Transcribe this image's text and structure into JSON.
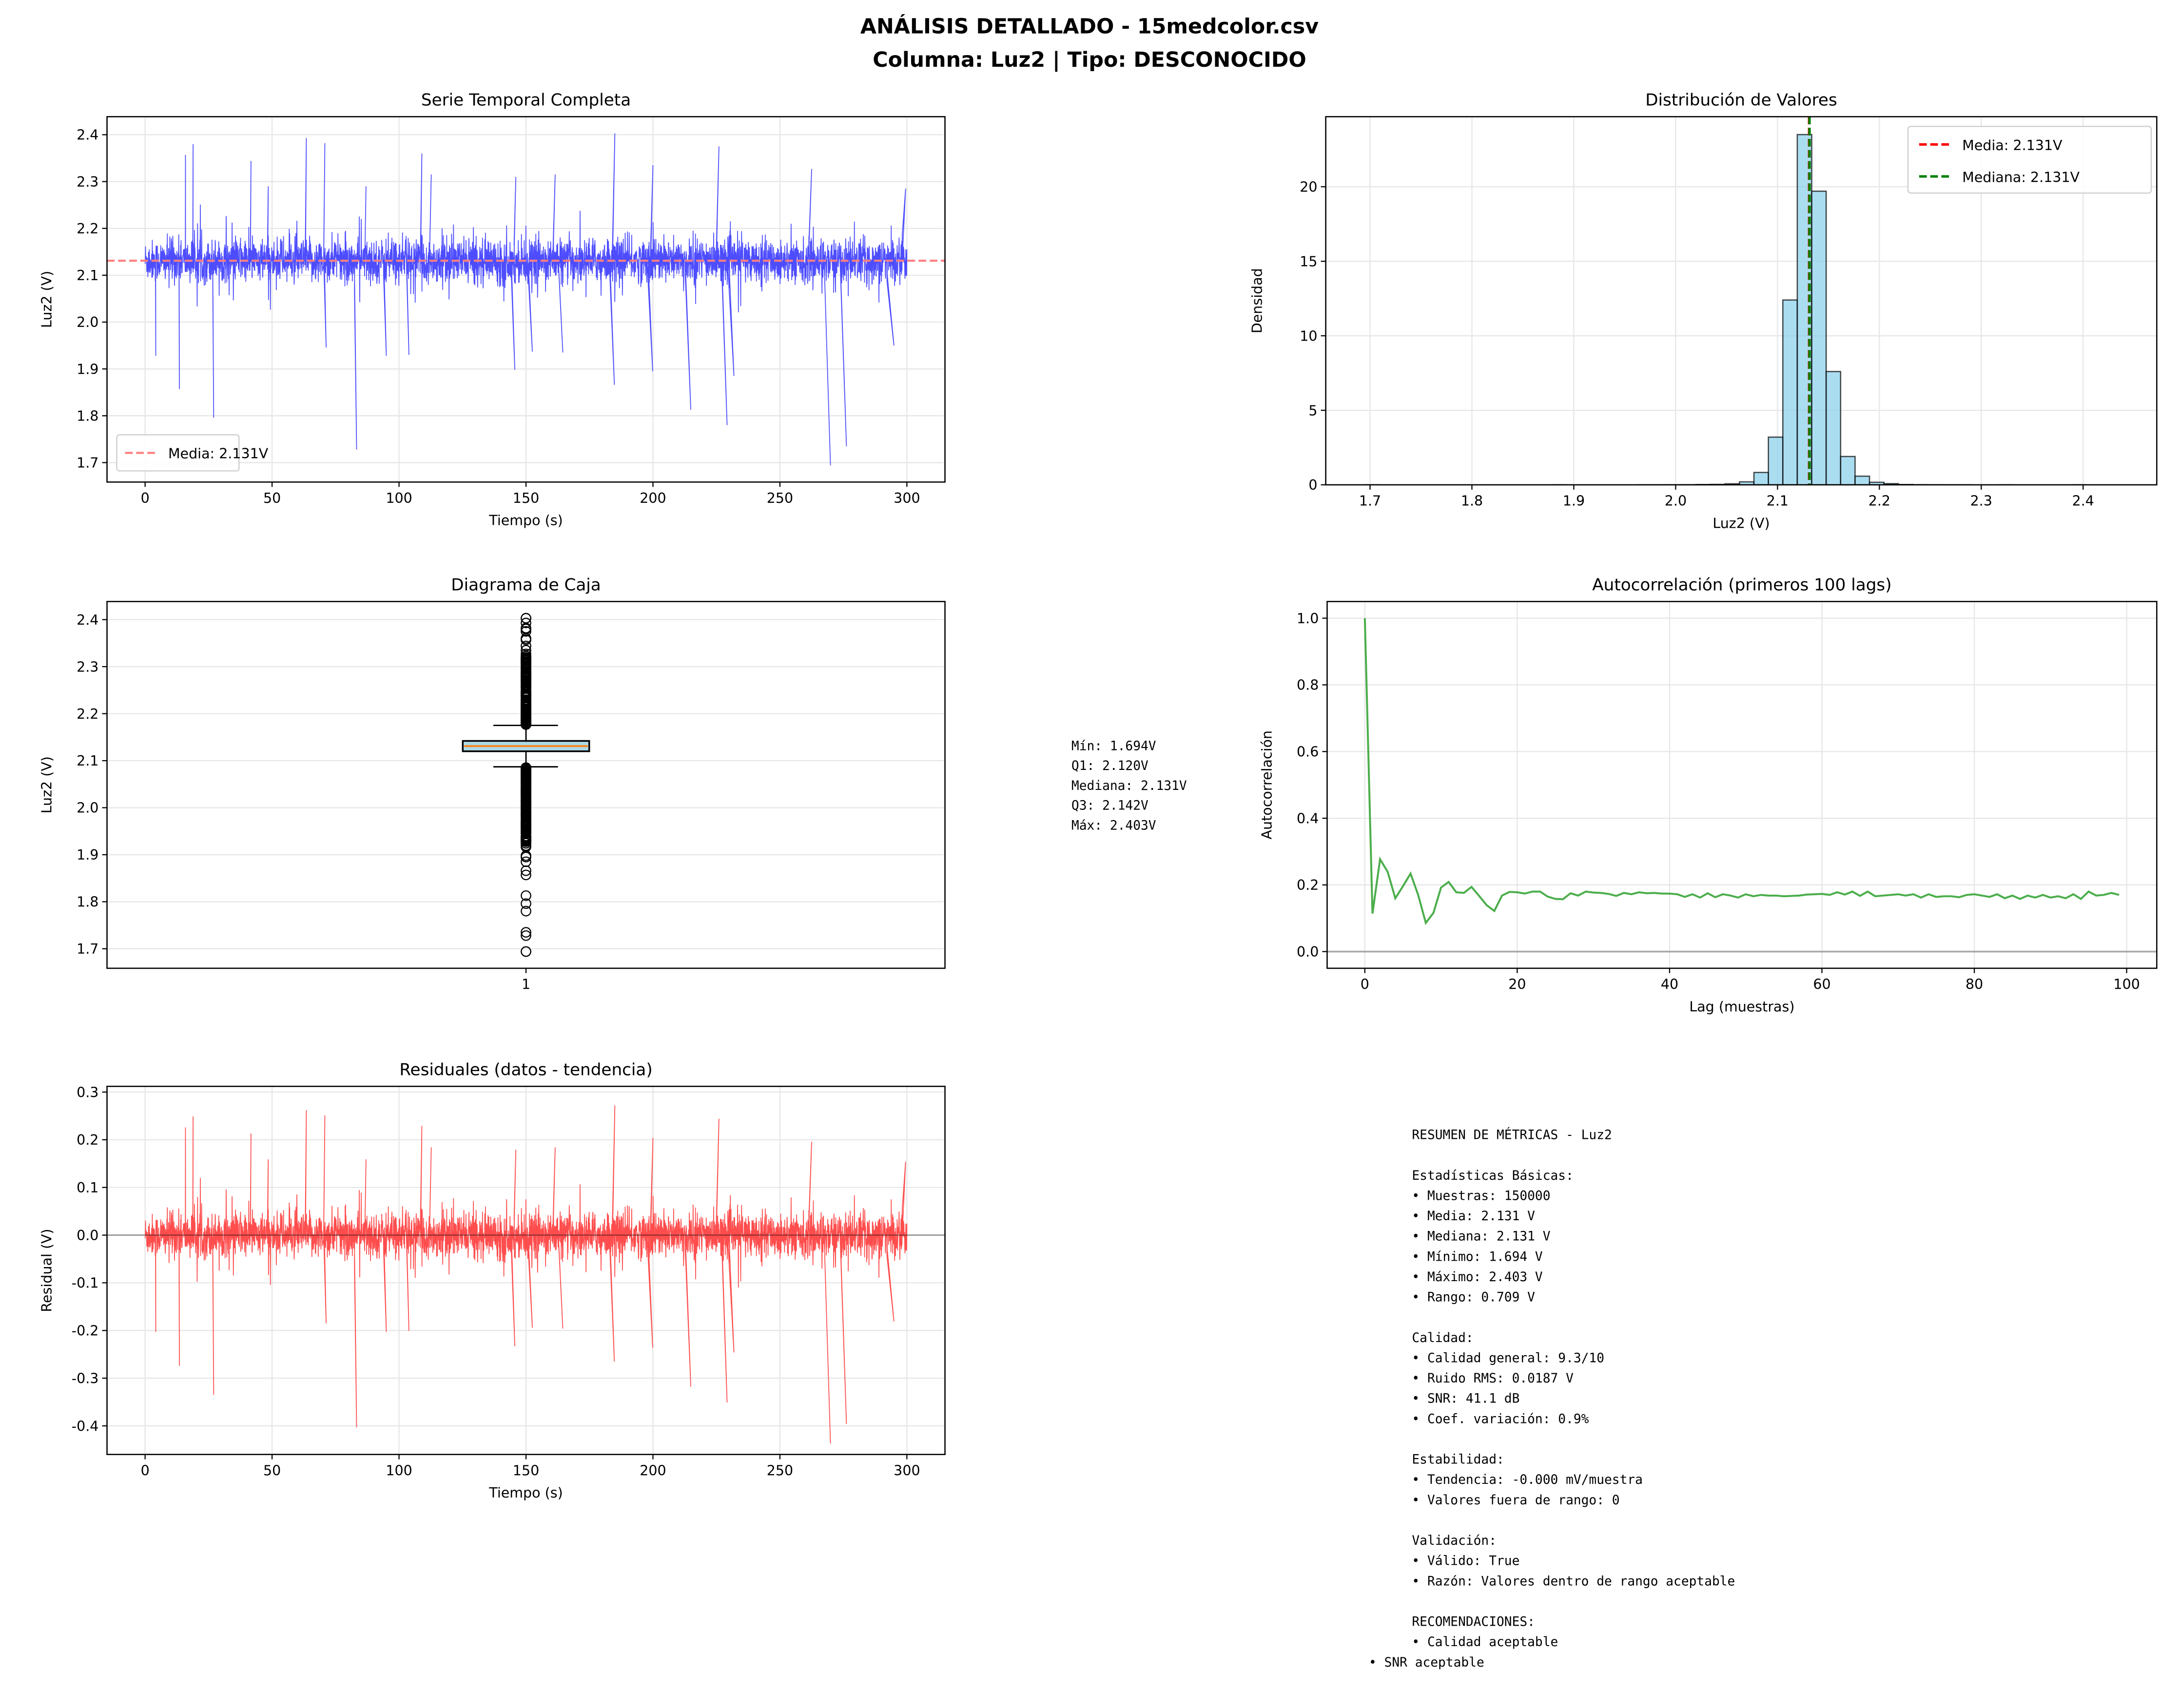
{
  "figure": {
    "suptitle_line1": "ANÁLISIS DETALLADO - 15medcolor.csv",
    "suptitle_line2": "Columna: Luz2 | Tipo: DESCONOCIDO"
  },
  "chart_data": [
    {
      "id": "timeseries",
      "type": "line",
      "title": "Serie Temporal Completa",
      "xlabel": "Tiempo (s)",
      "ylabel": "Luz2 (V)",
      "xlim": [
        -15,
        315
      ],
      "ylim": [
        1.6585,
        2.4385
      ],
      "xticks": [
        0,
        50,
        100,
        150,
        200,
        250,
        300
      ],
      "yticks": [
        1.7,
        1.8,
        1.9,
        2.0,
        2.1,
        2.2,
        2.3,
        2.4
      ],
      "grid": true,
      "color": "#4d4dff",
      "t_range": [
        0,
        300
      ],
      "samples": 150000,
      "mean": 2.131,
      "typical_band": [
        2.08,
        2.2
      ],
      "spikes": [
        [
          15.9,
          2.357
        ],
        [
          18.9,
          2.38
        ],
        [
          41.7,
          2.344
        ],
        [
          48.5,
          2.29
        ],
        [
          63.5,
          2.393
        ],
        [
          70.8,
          2.382
        ],
        [
          87,
          2.29
        ],
        [
          109,
          2.36
        ],
        [
          112.7,
          2.315
        ],
        [
          146,
          2.31
        ],
        [
          161.5,
          2.315
        ],
        [
          185,
          2.403
        ],
        [
          200,
          2.335
        ],
        [
          226,
          2.375
        ],
        [
          262.5,
          2.327
        ],
        [
          299.5,
          2.285
        ],
        [
          4.2,
          1.928
        ],
        [
          13.5,
          1.857
        ],
        [
          27,
          1.796
        ],
        [
          71.3,
          1.946
        ],
        [
          83.3,
          1.728
        ],
        [
          95,
          1.928
        ],
        [
          103.9,
          1.93
        ],
        [
          145.6,
          1.898
        ],
        [
          152.5,
          1.937
        ],
        [
          164.5,
          1.935
        ],
        [
          184.8,
          1.866
        ],
        [
          199.9,
          1.895
        ],
        [
          214.9,
          1.813
        ],
        [
          229.2,
          1.78
        ],
        [
          231.9,
          1.885
        ],
        [
          269.9,
          1.694
        ],
        [
          276.2,
          1.735
        ],
        [
          294.9,
          1.95
        ]
      ],
      "mean_line": {
        "value": 2.131,
        "label": "Media: 2.131V",
        "color": "#ff7f7f"
      },
      "legend": "lower-left"
    },
    {
      "id": "histogram",
      "type": "bar",
      "title": "Distribución de Valores",
      "xlabel": "Luz2 (V)",
      "ylabel": "Densidad",
      "xlim": [
        1.6565,
        2.4723
      ],
      "ylim": [
        0,
        24.7
      ],
      "xticks": [
        1.7,
        1.8,
        1.9,
        2.0,
        2.1,
        2.2,
        2.3,
        2.4
      ],
      "yticks": [
        0,
        5,
        10,
        15,
        20
      ],
      "grid": true,
      "bin_start": 1.694,
      "bin_end": 2.403,
      "bins": 50,
      "density": [
        0.003,
        0,
        0,
        0,
        0,
        0,
        0,
        0,
        0,
        0,
        0,
        0,
        0,
        0.003,
        0,
        0,
        0,
        0,
        0,
        0.003,
        0.003,
        0.005,
        0.008,
        0.02,
        0.03,
        0.07,
        0.2,
        0.83,
        3.2,
        12.4,
        23.5,
        19.7,
        7.6,
        1.9,
        0.58,
        0.17,
        0.08,
        0.02,
        0.008,
        0.005,
        0.003,
        0.003,
        0,
        0,
        0.003,
        0,
        0,
        0,
        0,
        0.003
      ],
      "bar_color": "#87ceeb",
      "edge_color": "#000000",
      "lines": [
        {
          "label": "Media: 2.131V",
          "value": 2.131,
          "color": "#ff0000"
        },
        {
          "label": "Mediana: 2.131V",
          "value": 2.131,
          "color": "#008000"
        }
      ],
      "legend": "upper-right"
    },
    {
      "id": "boxplot",
      "type": "box",
      "title": "Diagrama de Caja",
      "ylabel": "Luz2 (V)",
      "xticks": [
        "1"
      ],
      "ylim": [
        1.6585,
        2.4385
      ],
      "yticks": [
        1.7,
        1.8,
        1.9,
        2.0,
        2.1,
        2.2,
        2.3,
        2.4
      ],
      "grid": true,
      "q1": 2.12,
      "median": 2.131,
      "q3": 2.142,
      "whisker_low": 2.087,
      "whisker_high": 2.175,
      "min": 1.694,
      "max": 2.403,
      "box_color": "#add8e6",
      "median_color": "#ff7f0e",
      "stats_text": [
        "Mín: 1.694V",
        "Q1: 2.120V",
        "Mediana: 2.131V",
        "Q3: 2.142V",
        "Máx: 2.403V"
      ]
    },
    {
      "id": "autocorr",
      "type": "line",
      "title": "Autocorrelación (primeros 100 lags)",
      "xlabel": "Lag (muestras)",
      "ylabel": "Autocorrelación",
      "xlim": [
        -4.95,
        103.95
      ],
      "ylim": [
        -0.05,
        1.05
      ],
      "xticks": [
        0,
        20,
        40,
        60,
        80,
        100
      ],
      "yticks": [
        0.0,
        0.2,
        0.4,
        0.6,
        0.8,
        1.0
      ],
      "grid": true,
      "color": "#2ca02c",
      "zero_line_color": "#808080",
      "values": [
        1.0,
        0.114,
        0.277,
        0.239,
        0.16,
        0.196,
        0.234,
        0.17,
        0.086,
        0.116,
        0.192,
        0.209,
        0.178,
        0.176,
        0.194,
        0.167,
        0.139,
        0.122,
        0.168,
        0.179,
        0.178,
        0.174,
        0.18,
        0.18,
        0.165,
        0.158,
        0.157,
        0.175,
        0.168,
        0.18,
        0.177,
        0.176,
        0.173,
        0.167,
        0.176,
        0.172,
        0.178,
        0.175,
        0.176,
        0.174,
        0.174,
        0.172,
        0.164,
        0.172,
        0.162,
        0.175,
        0.163,
        0.172,
        0.168,
        0.162,
        0.172,
        0.166,
        0.17,
        0.168,
        0.168,
        0.166,
        0.167,
        0.168,
        0.171,
        0.172,
        0.173,
        0.17,
        0.178,
        0.171,
        0.18,
        0.167,
        0.18,
        0.166,
        0.168,
        0.17,
        0.172,
        0.168,
        0.172,
        0.162,
        0.172,
        0.164,
        0.166,
        0.166,
        0.163,
        0.17,
        0.172,
        0.168,
        0.164,
        0.172,
        0.16,
        0.168,
        0.158,
        0.168,
        0.162,
        0.17,
        0.162,
        0.166,
        0.16,
        0.172,
        0.158,
        0.18,
        0.168,
        0.17,
        0.176,
        0.17
      ]
    },
    {
      "id": "residuals",
      "type": "line",
      "title": "Residuales (datos - tendencia)",
      "xlabel": "Tiempo (s)",
      "ylabel": "Residual (V)",
      "xlim": [
        -15,
        315
      ],
      "ylim": [
        -0.46,
        0.312
      ],
      "xticks": [
        0,
        50,
        100,
        150,
        200,
        250,
        300
      ],
      "yticks": [
        -0.4,
        -0.3,
        -0.2,
        -0.1,
        0.0,
        0.1,
        0.2,
        0.3
      ],
      "grid": true,
      "color": "#ff4d4d",
      "zero_line_color": "#000000"
    }
  ],
  "summary": {
    "lines": [
      "RESUMEN DE MÉTRICAS - Luz2",
      "",
      "Estadísticas Básicas:",
      "• Muestras: 150000",
      "• Media: 2.131 V",
      "• Mediana: 2.131 V",
      "• Mínimo: 1.694 V",
      "• Máximo: 2.403 V",
      "• Rango: 0.709 V",
      "",
      "Calidad:",
      "• Calidad general: 9.3/10",
      "• Ruido RMS: 0.0187 V",
      "• SNR: 41.1 dB",
      "• Coef. variación: 0.9%",
      "",
      "Estabilidad:",
      "• Tendencia: -0.000 mV/muestra",
      "• Valores fuera de rango: 0",
      "",
      "Validación:",
      "• Válido: True",
      "• Razón: Valores dentro de rango aceptable",
      "",
      "RECOMENDACIONES:",
      "• Calidad aceptable"
    ],
    "last_line": "• SNR aceptable"
  }
}
